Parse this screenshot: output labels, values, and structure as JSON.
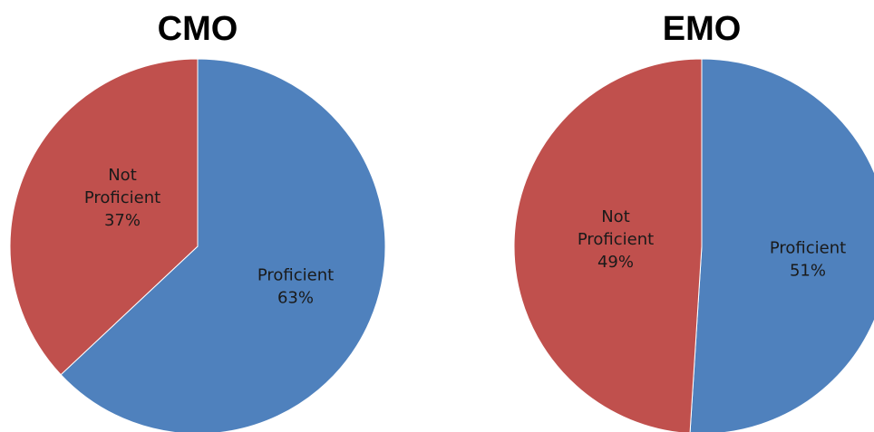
{
  "chart_data": [
    {
      "type": "pie",
      "title": "CMO",
      "start": "top",
      "direction": "clockwise",
      "slices": [
        {
          "label": "Proficient",
          "value": 63,
          "display": "63%",
          "color": "#4F81BD"
        },
        {
          "label": "Not Proficient",
          "value": 37,
          "display": "37%",
          "color": "#C0504D"
        }
      ]
    },
    {
      "type": "pie",
      "title": "EMO",
      "start": "top",
      "direction": "clockwise",
      "slices": [
        {
          "label": "Proficient",
          "value": 51,
          "display": "51%",
          "color": "#4F81BD"
        },
        {
          "label": "Not Proficient",
          "value": 49,
          "display": "49%",
          "color": "#C0504D"
        }
      ]
    }
  ]
}
